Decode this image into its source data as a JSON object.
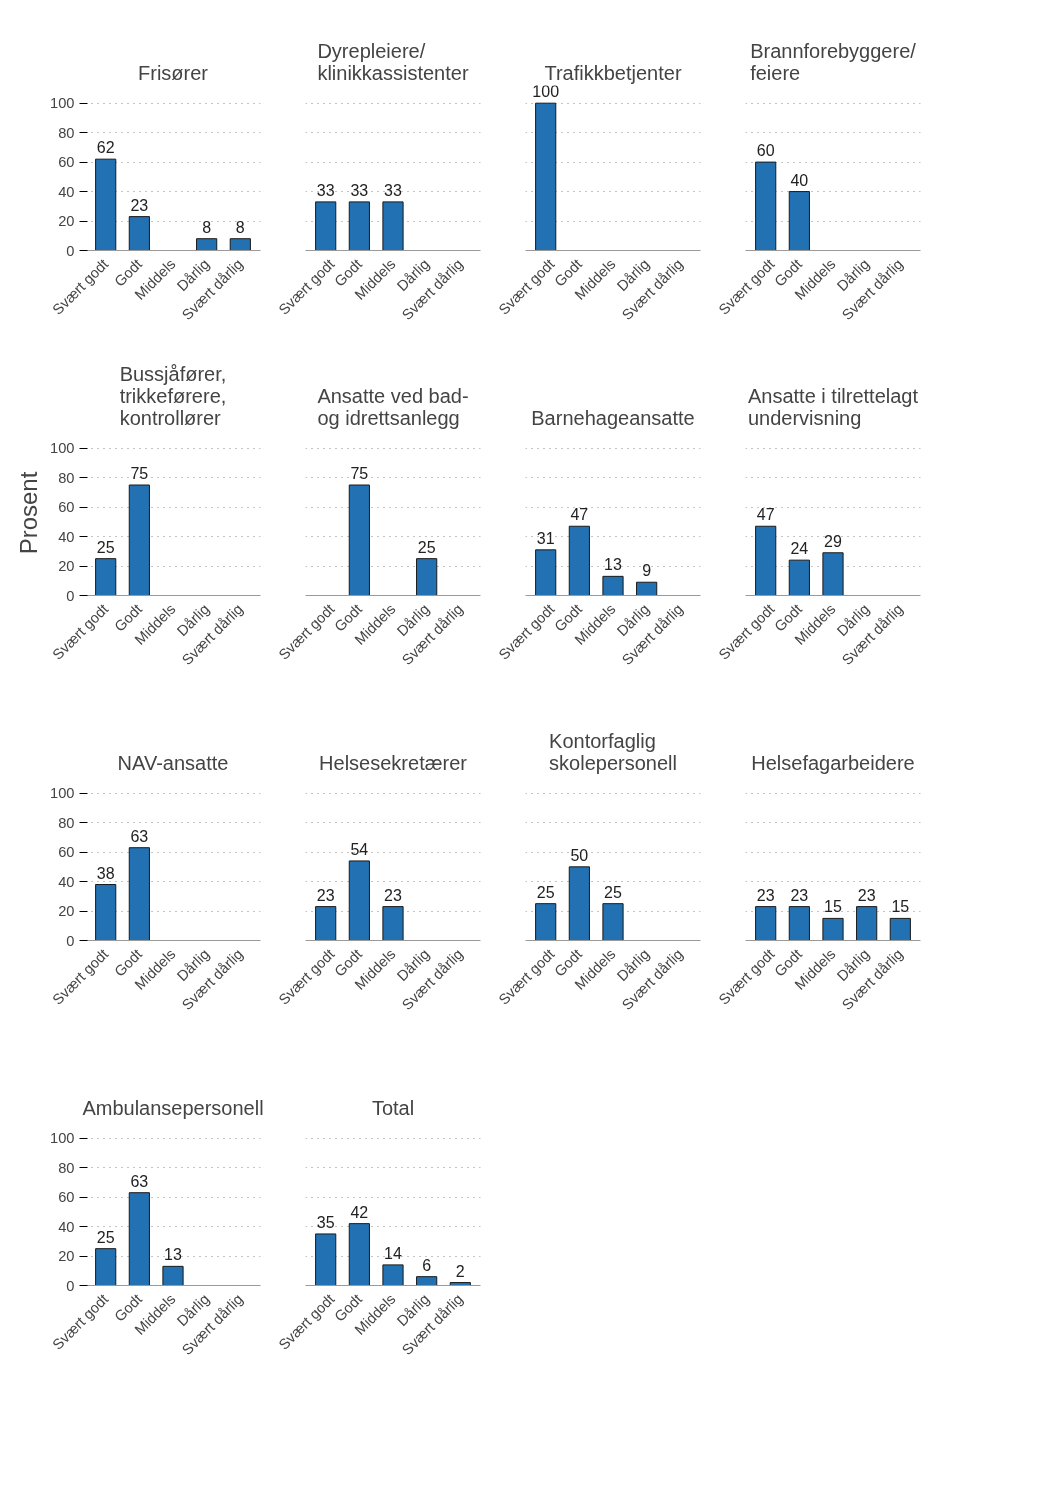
{
  "chart_data": [
    {
      "type": "bar",
      "title": "Frisører",
      "categories": [
        "Svært godt",
        "Godt",
        "Middels",
        "Dårlig",
        "Svært dårlig"
      ],
      "values": [
        62,
        23,
        null,
        8,
        8
      ],
      "color": "#2271b3",
      "ylim": [
        0,
        100
      ],
      "yticks": [
        0,
        20,
        40,
        60,
        80,
        100
      ],
      "grid": "y",
      "data_labels": true
    },
    {
      "type": "bar",
      "title": "Dyrepleiere/\nklinikkassistenter",
      "categories": [
        "Svært godt",
        "Godt",
        "Middels",
        "Dårlig",
        "Svært dårlig"
      ],
      "values": [
        33,
        33,
        33,
        null,
        null
      ],
      "color": "#2271b3",
      "ylim": [
        0,
        100
      ],
      "yticks": [
        0,
        20,
        40,
        60,
        80,
        100
      ],
      "grid": "y",
      "data_labels": true,
      "tick_labels": "x"
    },
    {
      "type": "bar",
      "title": "Trafikkbetjenter",
      "categories": [
        "Svært godt",
        "Godt",
        "Middels",
        "Dårlig",
        "Svært dårlig"
      ],
      "values": [
        100,
        null,
        null,
        null,
        null
      ],
      "color": "#2271b3",
      "ylim": [
        0,
        100
      ],
      "yticks": [
        0,
        20,
        40,
        60,
        80,
        100
      ],
      "grid": "y",
      "data_labels": true,
      "tick_labels": "x"
    },
    {
      "type": "bar",
      "title": "Brannforebyggere/\nfeiere",
      "categories": [
        "Svært godt",
        "Godt",
        "Middels",
        "Dårlig",
        "Svært dårlig"
      ],
      "values": [
        60,
        40,
        null,
        null,
        null
      ],
      "color": "#2271b3",
      "ylim": [
        0,
        100
      ],
      "yticks": [
        0,
        20,
        40,
        60,
        80,
        100
      ],
      "grid": "y",
      "data_labels": true,
      "tick_labels": "x"
    },
    {
      "type": "bar",
      "title": "Bussjåfører,\ntrikkeførere,\nkontrollører",
      "ylabel": "Prosent",
      "categories": [
        "Svært godt",
        "Godt",
        "Middels",
        "Dårlig",
        "Svært dårlig"
      ],
      "values": [
        25,
        75,
        null,
        null,
        null
      ],
      "color": "#2271b3",
      "ylim": [
        0,
        100
      ],
      "yticks": [
        0,
        20,
        40,
        60,
        80,
        100
      ],
      "grid": "y",
      "data_labels": true
    },
    {
      "type": "bar",
      "title": "Ansatte ved bad-\nog idrettsanlegg",
      "categories": [
        "Svært godt",
        "Godt",
        "Middels",
        "Dårlig",
        "Svært dårlig"
      ],
      "values": [
        null,
        75,
        null,
        25,
        null
      ],
      "color": "#2271b3",
      "ylim": [
        0,
        100
      ],
      "yticks": [
        0,
        20,
        40,
        60,
        80,
        100
      ],
      "grid": "y",
      "data_labels": true,
      "tick_labels": "x"
    },
    {
      "type": "bar",
      "title": "Barnehageansatte",
      "categories": [
        "Svært godt",
        "Godt",
        "Middels",
        "Dårlig",
        "Svært dårlig"
      ],
      "values": [
        31,
        47,
        13,
        9,
        null
      ],
      "color": "#2271b3",
      "ylim": [
        0,
        100
      ],
      "yticks": [
        0,
        20,
        40,
        60,
        80,
        100
      ],
      "grid": "y",
      "data_labels": true,
      "tick_labels": "x"
    },
    {
      "type": "bar",
      "title": "Ansatte i tilrettelagt\nundervisning",
      "categories": [
        "Svært godt",
        "Godt",
        "Middels",
        "Dårlig",
        "Svært dårlig"
      ],
      "values": [
        47,
        24,
        29,
        null,
        null
      ],
      "color": "#2271b3",
      "ylim": [
        0,
        100
      ],
      "yticks": [
        0,
        20,
        40,
        60,
        80,
        100
      ],
      "grid": "y",
      "data_labels": true,
      "tick_labels": "x"
    },
    {
      "type": "bar",
      "title": "NAV-ansatte",
      "categories": [
        "Svært godt",
        "Godt",
        "Middels",
        "Dårlig",
        "Svært dårlig"
      ],
      "values": [
        38,
        63,
        null,
        null,
        null
      ],
      "color": "#2271b3",
      "ylim": [
        0,
        100
      ],
      "yticks": [
        0,
        20,
        40,
        60,
        80,
        100
      ],
      "grid": "y",
      "data_labels": true
    },
    {
      "type": "bar",
      "title": "Helsesekretærer",
      "categories": [
        "Svært godt",
        "Godt",
        "Middels",
        "Dårlig",
        "Svært dårlig"
      ],
      "values": [
        23,
        54,
        23,
        null,
        null
      ],
      "color": "#2271b3",
      "ylim": [
        0,
        100
      ],
      "yticks": [
        0,
        20,
        40,
        60,
        80,
        100
      ],
      "grid": "y",
      "data_labels": true,
      "tick_labels": "x"
    },
    {
      "type": "bar",
      "title": "Kontorfaglig\nskolepersonell",
      "categories": [
        "Svært godt",
        "Godt",
        "Middels",
        "Dårlig",
        "Svært dårlig"
      ],
      "values": [
        25,
        50,
        25,
        null,
        null
      ],
      "color": "#2271b3",
      "ylim": [
        0,
        100
      ],
      "yticks": [
        0,
        20,
        40,
        60,
        80,
        100
      ],
      "grid": "y",
      "data_labels": true,
      "tick_labels": "x"
    },
    {
      "type": "bar",
      "title": "Helsefagarbeidere",
      "categories": [
        "Svært godt",
        "Godt",
        "Middels",
        "Dårlig",
        "Svært dårlig"
      ],
      "values": [
        23,
        23,
        15,
        23,
        15
      ],
      "color": "#2271b3",
      "ylim": [
        0,
        100
      ],
      "yticks": [
        0,
        20,
        40,
        60,
        80,
        100
      ],
      "grid": "y",
      "data_labels": true,
      "tick_labels": "x"
    },
    {
      "type": "bar",
      "title": "Ambulansepersonell",
      "categories": [
        "Svært godt",
        "Godt",
        "Middels",
        "Dårlig",
        "Svært dårlig"
      ],
      "values": [
        25,
        63,
        13,
        null,
        null
      ],
      "color": "#2271b3",
      "ylim": [
        0,
        100
      ],
      "yticks": [
        0,
        20,
        40,
        60,
        80,
        100
      ],
      "grid": "y",
      "data_labels": true
    },
    {
      "type": "bar",
      "title": "Total",
      "categories": [
        "Svært godt",
        "Godt",
        "Middels",
        "Dårlig",
        "Svært dårlig"
      ],
      "values": [
        35,
        42,
        14,
        6,
        2
      ],
      "color": "#2271b3",
      "ylim": [
        0,
        100
      ],
      "yticks": [
        0,
        20,
        40,
        60,
        80,
        100
      ],
      "grid": "y",
      "data_labels": true,
      "tick_labels": "x"
    }
  ]
}
